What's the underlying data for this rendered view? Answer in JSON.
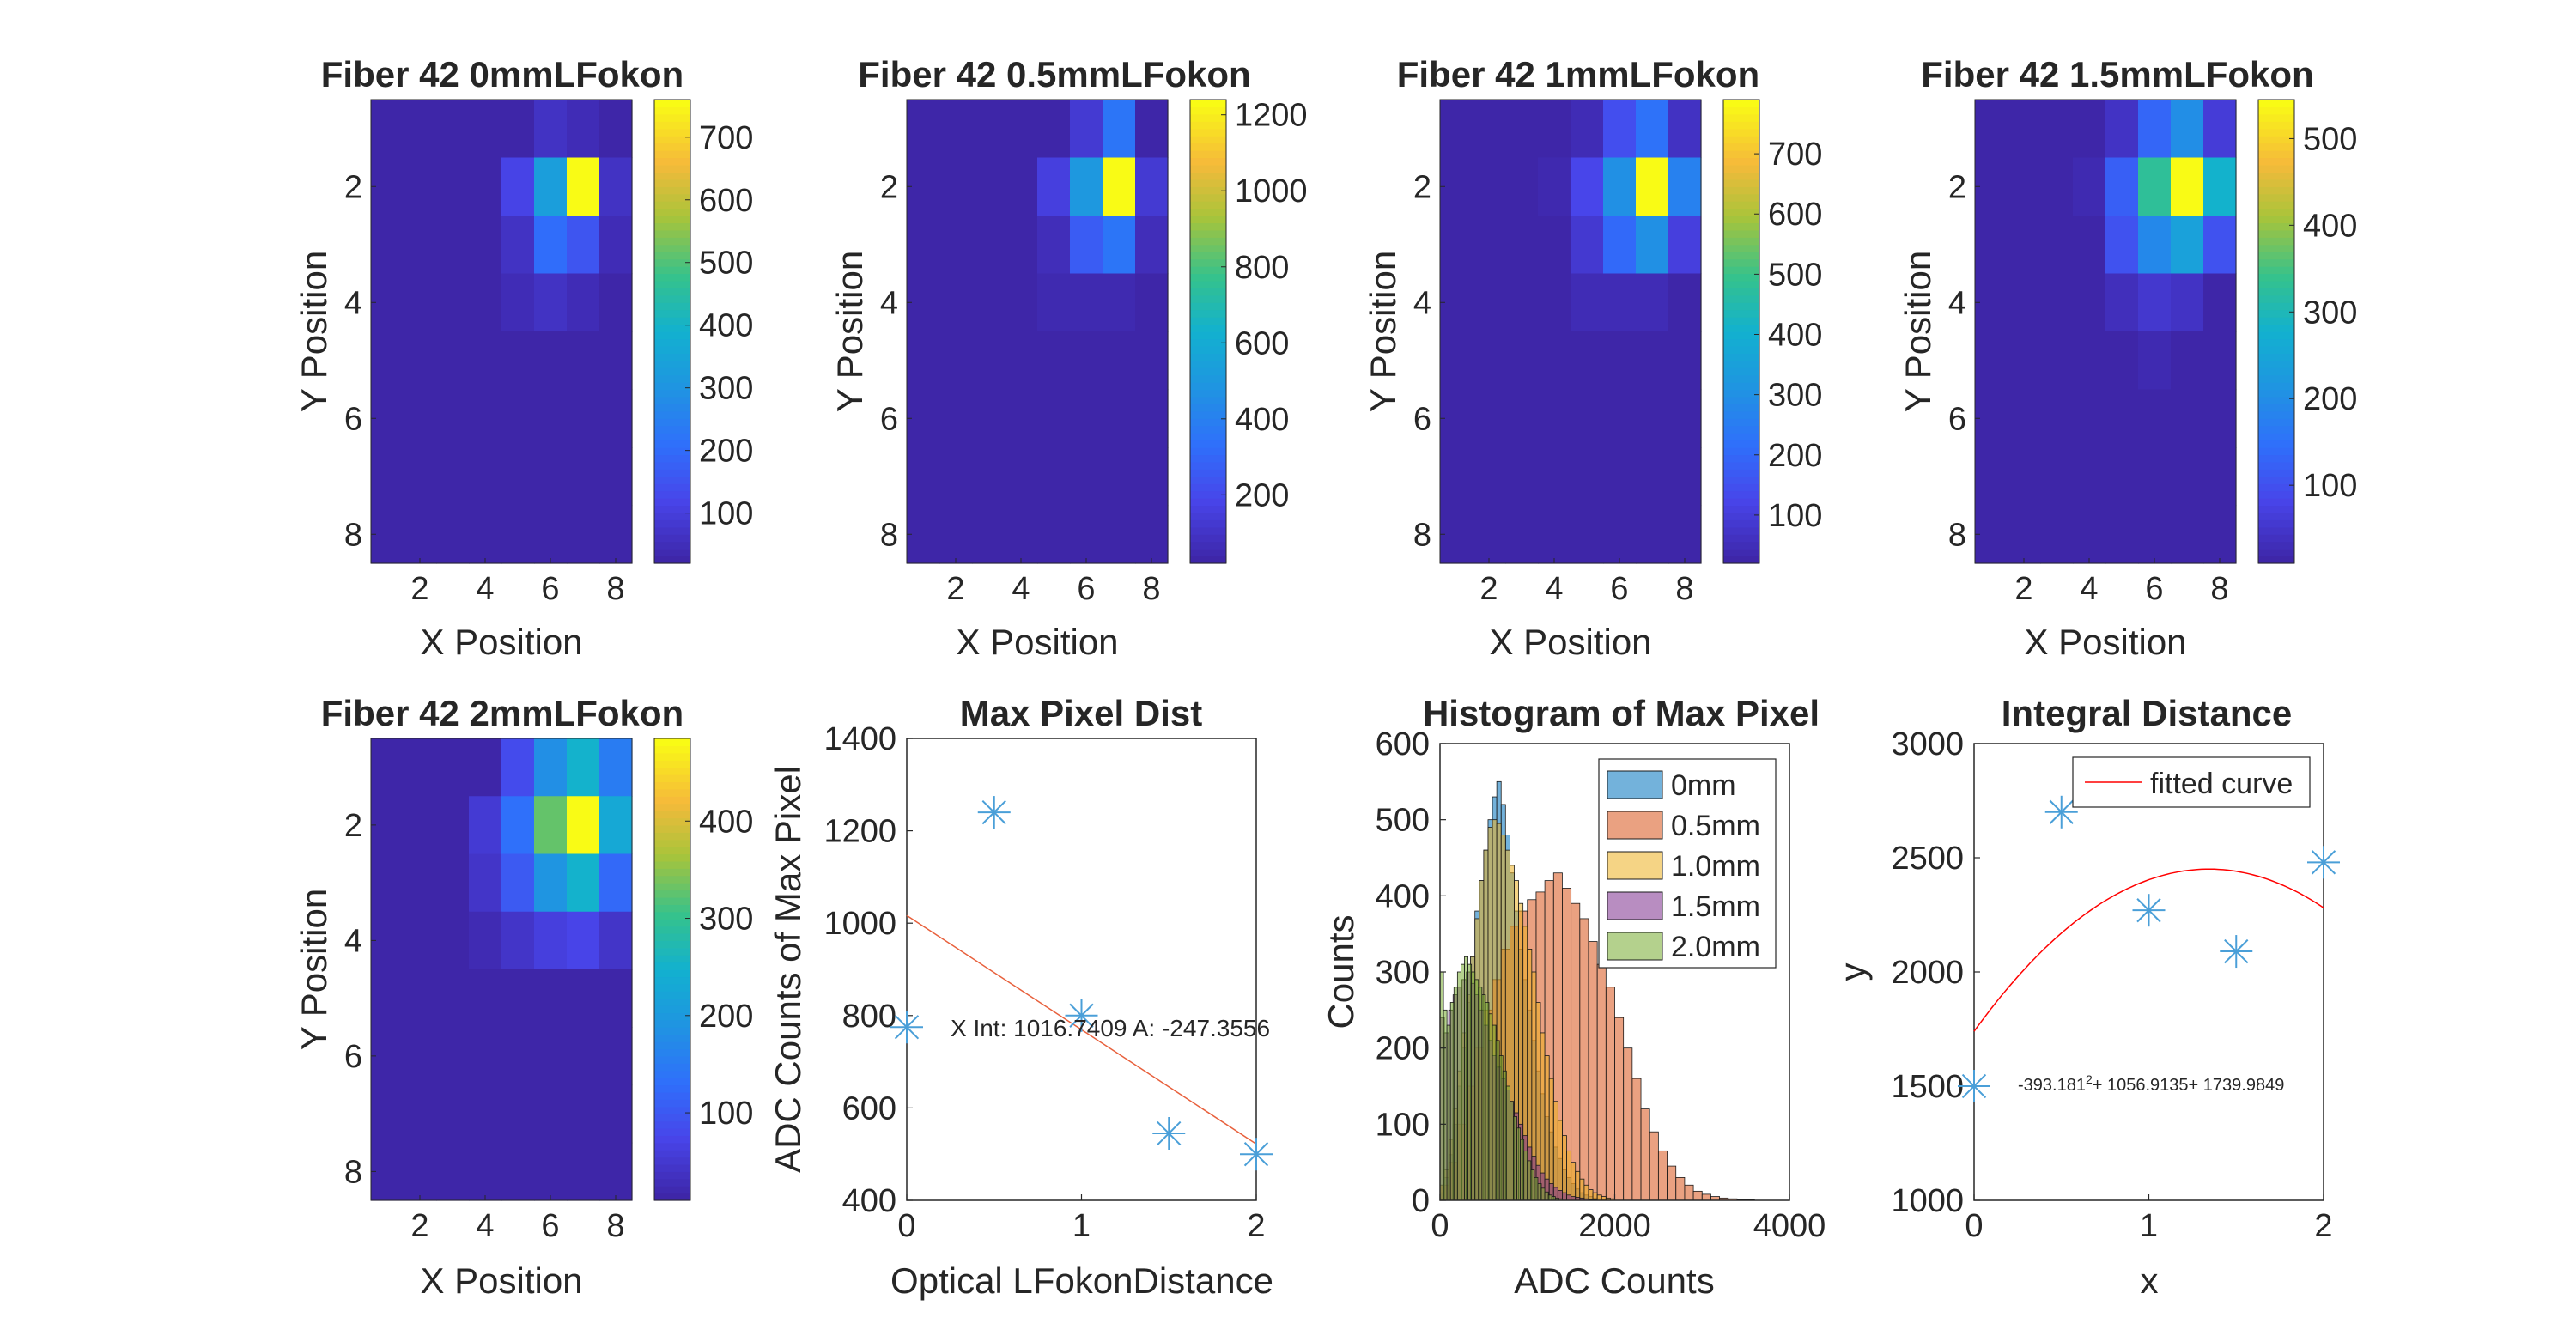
{
  "figure_background": "#ffffff",
  "colormap": "parula",
  "chart_data": [
    {
      "type": "heatmap",
      "title": "Fiber 42 0mmLFokon",
      "xlabel": "X Position",
      "ylabel": "Y Position",
      "xticks": [
        "2",
        "4",
        "6",
        "8"
      ],
      "yticks": [
        "2",
        "4",
        "6",
        "8"
      ],
      "colorbar": {
        "ticks": [
          100,
          200,
          300,
          400,
          500,
          600,
          700
        ],
        "range": [
          20,
          760
        ]
      },
      "values": [
        [
          0,
          0,
          0,
          0,
          10,
          60,
          40,
          0
        ],
        [
          0,
          0,
          0,
          0,
          110,
          330,
          760,
          60
        ],
        [
          0,
          0,
          0,
          0,
          60,
          200,
          150,
          40
        ],
        [
          0,
          0,
          0,
          0,
          40,
          60,
          40,
          0
        ],
        [
          0,
          0,
          0,
          0,
          0,
          0,
          0,
          0
        ],
        [
          0,
          0,
          0,
          0,
          0,
          0,
          0,
          0
        ],
        [
          0,
          0,
          0,
          0,
          0,
          0,
          0,
          0
        ],
        [
          0,
          0,
          0,
          0,
          0,
          0,
          0,
          0
        ]
      ]
    },
    {
      "type": "heatmap",
      "title": "Fiber 42 0.5mmLFokon",
      "xlabel": "X Position",
      "ylabel": "Y Position",
      "xticks": [
        "2",
        "4",
        "6",
        "8"
      ],
      "yticks": [
        "2",
        "4",
        "6",
        "8"
      ],
      "colorbar": {
        "ticks": [
          200,
          400,
          600,
          800,
          1000,
          1200
        ],
        "range": [
          20,
          1240
        ]
      },
      "values": [
        [
          0,
          0,
          0,
          0,
          20,
          120,
          350,
          20
        ],
        [
          0,
          0,
          0,
          0,
          150,
          500,
          1240,
          120
        ],
        [
          0,
          0,
          0,
          0,
          60,
          260,
          350,
          60
        ],
        [
          0,
          0,
          0,
          0,
          40,
          40,
          40,
          0
        ],
        [
          0,
          0,
          0,
          0,
          0,
          0,
          0,
          0
        ],
        [
          0,
          0,
          0,
          0,
          0,
          0,
          0,
          0
        ],
        [
          0,
          0,
          0,
          0,
          0,
          0,
          0,
          0
        ],
        [
          0,
          0,
          0,
          0,
          0,
          0,
          0,
          0
        ]
      ]
    },
    {
      "type": "heatmap",
      "title": "Fiber 42 1mmLFokon",
      "xlabel": "X Position",
      "ylabel": "Y Position",
      "xticks": [
        "2",
        "4",
        "6",
        "8"
      ],
      "yticks": [
        "2",
        "4",
        "6",
        "8"
      ],
      "colorbar": {
        "ticks": [
          100,
          200,
          300,
          400,
          500,
          600,
          700
        ],
        "range": [
          20,
          790
        ]
      },
      "values": [
        [
          0,
          0,
          0,
          0,
          40,
          140,
          220,
          60
        ],
        [
          0,
          0,
          0,
          30,
          120,
          300,
          790,
          260
        ],
        [
          0,
          0,
          0,
          0,
          80,
          200,
          300,
          100
        ],
        [
          0,
          0,
          0,
          0,
          40,
          40,
          40,
          0
        ],
        [
          0,
          0,
          0,
          0,
          0,
          0,
          0,
          0
        ],
        [
          0,
          0,
          0,
          0,
          0,
          0,
          0,
          0
        ],
        [
          0,
          0,
          0,
          0,
          0,
          0,
          0,
          0
        ],
        [
          0,
          0,
          0,
          0,
          0,
          0,
          0,
          0
        ]
      ]
    },
    {
      "type": "heatmap",
      "title": "Fiber 42 1.5mmLFokon",
      "xlabel": "X Position",
      "ylabel": "Y Position",
      "xticks": [
        "2",
        "4",
        "6",
        "8"
      ],
      "yticks": [
        "2",
        "4",
        "6",
        "8"
      ],
      "colorbar": {
        "ticks": [
          100,
          200,
          300,
          400,
          500
        ],
        "range": [
          10,
          545
        ]
      },
      "values": [
        [
          0,
          0,
          0,
          0,
          40,
          130,
          200,
          60
        ],
        [
          0,
          0,
          0,
          20,
          120,
          330,
          545,
          280
        ],
        [
          0,
          0,
          0,
          10,
          100,
          190,
          240,
          100
        ],
        [
          0,
          0,
          0,
          0,
          30,
          50,
          40,
          0
        ],
        [
          0,
          0,
          0,
          0,
          0,
          20,
          0,
          0
        ],
        [
          0,
          0,
          0,
          0,
          0,
          0,
          0,
          0
        ],
        [
          0,
          0,
          0,
          0,
          0,
          0,
          0,
          0
        ],
        [
          0,
          0,
          0,
          0,
          0,
          0,
          0,
          0
        ]
      ]
    },
    {
      "type": "heatmap",
      "title": "Fiber 42 2mmLFokon",
      "xlabel": "X Position",
      "ylabel": "Y Position",
      "xticks": [
        "2",
        "4",
        "6",
        "8"
      ],
      "yticks": [
        "2",
        "4",
        "6",
        "8"
      ],
      "colorbar": {
        "ticks": [
          100,
          200,
          300,
          400
        ],
        "range": [
          10,
          485
        ]
      },
      "values": [
        [
          0,
          0,
          0,
          10,
          80,
          180,
          250,
          150
        ],
        [
          0,
          0,
          10,
          50,
          130,
          330,
          485,
          230
        ],
        [
          0,
          0,
          0,
          40,
          100,
          190,
          250,
          120
        ],
        [
          0,
          0,
          0,
          20,
          40,
          60,
          70,
          40
        ],
        [
          0,
          0,
          0,
          0,
          10,
          10,
          10,
          0
        ],
        [
          0,
          0,
          0,
          0,
          0,
          0,
          0,
          0
        ],
        [
          0,
          0,
          0,
          0,
          0,
          0,
          0,
          0
        ],
        [
          0,
          0,
          0,
          0,
          0,
          0,
          0,
          0
        ]
      ]
    },
    {
      "type": "scatter",
      "title": "Max Pixel Dist",
      "xlabel": "Optical LFokonDistance",
      "ylabel": "ADC Counts of Max Pixel",
      "xlim": [
        0,
        2
      ],
      "ylim": [
        400,
        1400
      ],
      "xticks": [
        "0",
        "1",
        "2"
      ],
      "yticks": [
        "400",
        "600",
        "800",
        "1000",
        "1200",
        "1400"
      ],
      "points": {
        "x": [
          0,
          0.5,
          1.0,
          1.5,
          2.0
        ],
        "y": [
          775,
          1240,
          800,
          545,
          500
        ]
      },
      "fit_line": {
        "x": [
          0,
          2
        ],
        "y": [
          1016.7409,
          522.0297
        ]
      },
      "annotation": "X Int: 1016.7409 A: -247.3556",
      "marker_color": "#4A9FD8",
      "line_color": "#E8603C"
    },
    {
      "type": "bar",
      "title": "Histogram of Max Pixel",
      "xlabel": "ADC Counts",
      "ylabel": "Counts",
      "xlim": [
        0,
        4000
      ],
      "ylim": [
        0,
        600
      ],
      "xticks": [
        "0",
        "2000",
        "4000"
      ],
      "yticks": [
        "0",
        "100",
        "200",
        "300",
        "400",
        "500",
        "600"
      ],
      "legend": {
        "position": "top-right",
        "entries": [
          "0mm",
          "0.5mm",
          "1.0mm",
          "1.5mm",
          "2.0mm"
        ]
      },
      "series": [
        {
          "name": "0mm",
          "color": "#0072BD",
          "edges": [
            0,
            50,
            100,
            150,
            200,
            250,
            300,
            350,
            400,
            450,
            500,
            550,
            600,
            650,
            700,
            750,
            800,
            850,
            900,
            950,
            1000,
            1050,
            1100,
            1150,
            1200,
            1250,
            1300,
            1350,
            1400,
            1450,
            1500,
            1550,
            1600,
            1650,
            1700,
            1750,
            1800,
            1850,
            1900
          ],
          "counts": [
            10,
            30,
            60,
            100,
            150,
            200,
            260,
            320,
            380,
            420,
            460,
            500,
            530,
            550,
            520,
            480,
            430,
            380,
            330,
            290,
            250,
            210,
            170,
            140,
            110,
            90,
            70,
            55,
            40,
            30,
            22,
            15,
            10,
            7,
            5,
            3,
            2,
            1
          ]
        },
        {
          "name": "0.5mm",
          "color": "#D95319",
          "edges": [
            0,
            100,
            200,
            300,
            400,
            500,
            600,
            700,
            800,
            900,
            1000,
            1100,
            1200,
            1300,
            1400,
            1500,
            1600,
            1700,
            1800,
            1900,
            2000,
            2100,
            2200,
            2300,
            2400,
            2500,
            2600,
            2700,
            2800,
            2900,
            3000,
            3100,
            3200,
            3300,
            3400,
            3500,
            3600
          ],
          "counts": [
            20,
            50,
            100,
            150,
            200,
            250,
            290,
            330,
            360,
            380,
            395,
            405,
            420,
            430,
            410,
            390,
            370,
            340,
            310,
            280,
            240,
            200,
            160,
            120,
            90,
            65,
            45,
            30,
            20,
            12,
            8,
            5,
            3,
            2,
            1,
            1
          ]
        },
        {
          "name": "1.0mm",
          "color": "#EDB120",
          "edges": [
            0,
            50,
            100,
            150,
            200,
            250,
            300,
            350,
            400,
            450,
            500,
            550,
            600,
            650,
            700,
            750,
            800,
            850,
            900,
            950,
            1000,
            1050,
            1100,
            1150,
            1200,
            1250,
            1300,
            1350,
            1400,
            1450,
            1500,
            1550,
            1600,
            1650,
            1700,
            1750,
            1800,
            1850,
            1900,
            1950,
            2000
          ],
          "counts": [
            20,
            40,
            80,
            120,
            170,
            220,
            270,
            320,
            370,
            420,
            460,
            490,
            500,
            495,
            480,
            460,
            440,
            420,
            390,
            360,
            330,
            300,
            260,
            220,
            190,
            160,
            130,
            105,
            85,
            65,
            50,
            38,
            28,
            20,
            14,
            10,
            7,
            5,
            3,
            2
          ]
        },
        {
          "name": "1.5mm",
          "color": "#7E2F8E",
          "edges": [
            0,
            50,
            100,
            150,
            200,
            250,
            300,
            350,
            400,
            450,
            500,
            550,
            600,
            650,
            700,
            750,
            800,
            850,
            900,
            950,
            1000,
            1050,
            1100,
            1150,
            1200,
            1250,
            1300,
            1350,
            1400,
            1450,
            1500,
            1550,
            1600,
            1650,
            1700,
            1750,
            1800
          ],
          "counts": [
            240,
            220,
            250,
            270,
            280,
            290,
            300,
            285,
            270,
            250,
            230,
            210,
            190,
            175,
            160,
            145,
            130,
            115,
            100,
            85,
            70,
            58,
            46,
            36,
            28,
            22,
            17,
            13,
            10,
            7,
            5,
            4,
            3,
            2,
            1,
            1
          ]
        },
        {
          "name": "2.0mm",
          "color": "#77AC30",
          "edges": [
            0,
            40,
            80,
            120,
            160,
            200,
            240,
            280,
            320,
            360,
            400,
            440,
            480,
            520,
            560,
            600,
            640,
            680,
            720,
            760,
            800,
            840,
            880,
            920,
            960,
            1000,
            1040,
            1080,
            1120,
            1160,
            1200,
            1240,
            1280,
            1320,
            1360,
            1400
          ],
          "counts": [
            300,
            250,
            230,
            260,
            280,
            300,
            310,
            320,
            310,
            300,
            290,
            280,
            270,
            260,
            245,
            230,
            210,
            190,
            170,
            150,
            130,
            110,
            95,
            80,
            65,
            52,
            40,
            30,
            22,
            16,
            11,
            7,
            5,
            3,
            2
          ]
        }
      ]
    },
    {
      "type": "scatter",
      "title": "Integral Distance",
      "xlabel": "x",
      "ylabel": "y",
      "xlim": [
        0,
        2
      ],
      "ylim": [
        1000,
        3000
      ],
      "xticks": [
        "0",
        "1",
        "2"
      ],
      "yticks": [
        "1000",
        "1500",
        "2000",
        "2500",
        "3000"
      ],
      "points": {
        "x": [
          0,
          0.5,
          1.0,
          1.5,
          2.0
        ],
        "y": [
          1500,
          2700,
          2270,
          2090,
          2480
        ]
      },
      "fit_curve": {
        "a": -393.181,
        "b": 1056.9135,
        "c": 1739.9849
      },
      "legend": {
        "position": "top-right",
        "entries": [
          "fitted curve"
        ]
      },
      "annotation": {
        "prefix": "-393.181",
        "sup": "2",
        "suffix": "+ 1056.9135+ 1739.9849"
      },
      "marker_color": "#4A9FD8",
      "line_color": "#FF0000"
    }
  ]
}
